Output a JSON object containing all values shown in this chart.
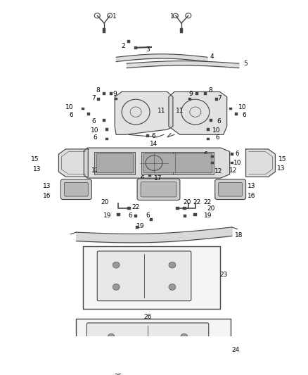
{
  "bg_color": "#ffffff",
  "fig_width": 4.38,
  "fig_height": 5.33,
  "dpi": 100,
  "line_color": "#444444",
  "fill_color": "#d0d0d0",
  "fill_color2": "#b8b8b8"
}
